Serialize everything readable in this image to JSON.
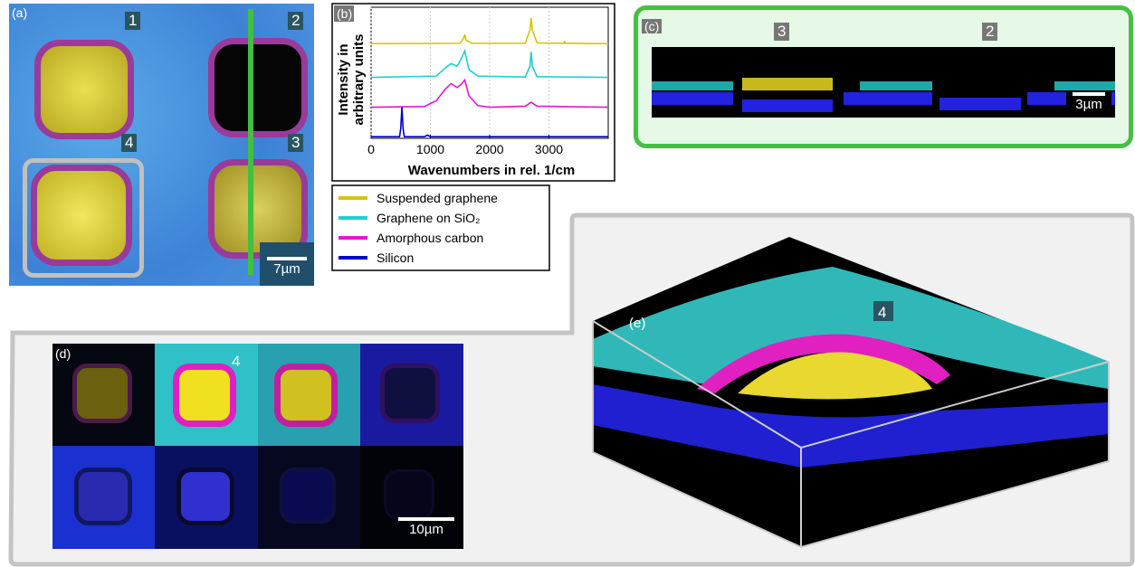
{
  "panel_a": {
    "label": "(a)",
    "markers": [
      "1",
      "2",
      "4",
      "3"
    ],
    "scale_bar": "7µm"
  },
  "chart_data": {
    "type": "line",
    "panel_label": "(b)",
    "x_label": "Wavenumbers in rel. 1/cm",
    "y_label": [
      "Intensity in",
      "arbitrary units"
    ],
    "xlim": [
      0,
      4000
    ],
    "xticks": [
      0,
      1000,
      2000,
      3000
    ],
    "ylim": [
      0,
      4
    ],
    "grid": true,
    "series": [
      {
        "name": "Suspended graphene",
        "color": "#d4c400",
        "x": [
          0,
          1500,
          1560,
          1580,
          1600,
          1700,
          2600,
          2680,
          2700,
          2720,
          2800,
          3250,
          3260,
          3270,
          4000
        ],
        "values": [
          2.89,
          2.9,
          3.05,
          3.17,
          3.0,
          2.9,
          2.9,
          3.3,
          3.67,
          3.3,
          2.91,
          2.9,
          2.97,
          2.9,
          2.89
        ]
      },
      {
        "name": "Graphene on SiO₂",
        "color": "#1fcfcf",
        "x": [
          0,
          1100,
          1250,
          1350,
          1450,
          1500,
          1580,
          1650,
          1800,
          2600,
          2680,
          2700,
          2720,
          2800,
          4000
        ],
        "values": [
          1.86,
          1.9,
          2.15,
          2.28,
          2.2,
          2.35,
          2.67,
          2.1,
          1.9,
          1.87,
          2.2,
          2.64,
          2.2,
          1.88,
          1.86
        ]
      },
      {
        "name": "Amorphous carbon",
        "color": "#e815d0",
        "x": [
          0,
          900,
          1100,
          1250,
          1350,
          1450,
          1520,
          1580,
          1650,
          1800,
          2000,
          2600,
          2700,
          2800,
          4000
        ],
        "values": [
          0.95,
          0.97,
          1.15,
          1.5,
          1.67,
          1.55,
          1.65,
          1.78,
          1.3,
          1.0,
          0.95,
          0.98,
          1.1,
          0.98,
          0.95
        ]
      },
      {
        "name": "Silicon",
        "color": "#0000cc",
        "x": [
          0,
          480,
          500,
          520,
          540,
          560,
          900,
          950,
          1000,
          4000
        ],
        "values": [
          0.05,
          0.05,
          0.3,
          0.95,
          0.3,
          0.05,
          0.05,
          0.1,
          0.05,
          0.05
        ]
      }
    ]
  },
  "panel_c": {
    "label": "(c)",
    "markers": [
      "3",
      "2"
    ],
    "scale_bar": "3µm"
  },
  "panel_d": {
    "label": "(d)",
    "marker": "4",
    "scale_bar": "10µm"
  },
  "panel_e": {
    "label": "(e)",
    "marker": "4"
  }
}
